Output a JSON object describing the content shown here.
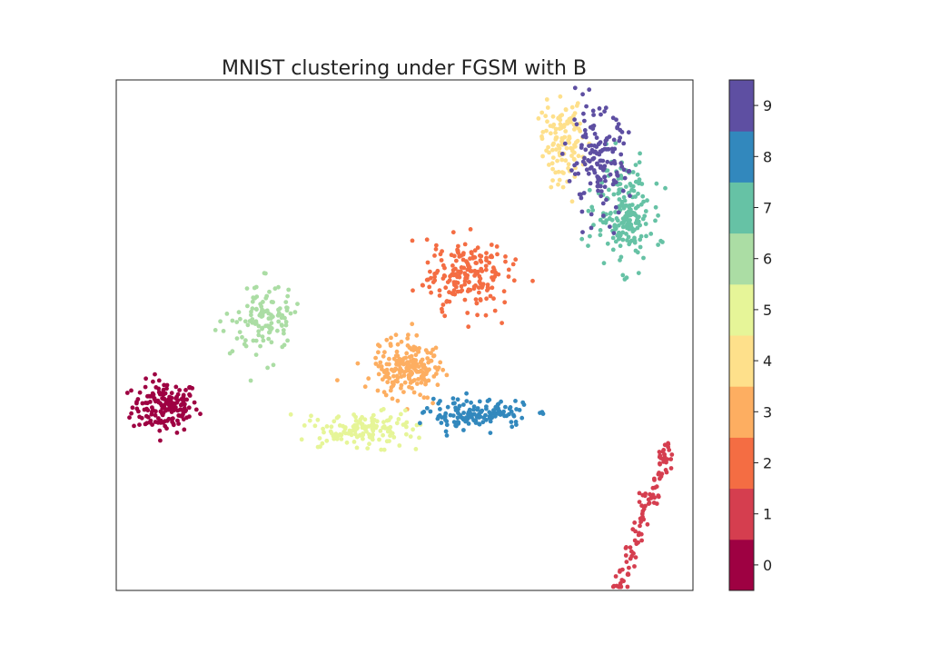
{
  "chart_data": {
    "type": "scatter",
    "title": "MNIST clustering under FGSM with B",
    "xlabel": "",
    "ylabel": "",
    "axes_ticks": false,
    "grid": false,
    "legend": "colorbar-right",
    "colorbar": {
      "ticks": [
        "0",
        "1",
        "2",
        "3",
        "4",
        "5",
        "6",
        "7",
        "8",
        "9"
      ],
      "colors": [
        "#9e0142",
        "#d53e4f",
        "#f46d43",
        "#fdae61",
        "#fee08b",
        "#e6f598",
        "#abdda4",
        "#66c2a5",
        "#3288bd",
        "#5e4fa2"
      ]
    },
    "xlim": [
      0,
      100
    ],
    "ylim": [
      0,
      100
    ],
    "clusters": [
      {
        "label": "0",
        "center": [
          8.5,
          36
        ],
        "spread": [
          5.2,
          4.6
        ],
        "count": 170
      },
      {
        "label": "1",
        "center": [
          91.5,
          14
        ],
        "spread": [
          4.6,
          15
        ],
        "count": 110,
        "shape": "diagonal"
      },
      {
        "label": "2",
        "center": [
          60.5,
          62
        ],
        "spread": [
          6.5,
          6.6
        ],
        "count": 200
      },
      {
        "label": "3",
        "center": [
          50.5,
          43.5
        ],
        "spread": [
          5.5,
          5.0
        ],
        "count": 210
      },
      {
        "label": "4",
        "center": [
          77.5,
          87
        ],
        "spread": [
          3.5,
          7.5
        ],
        "count": 120
      },
      {
        "label": "5",
        "center": [
          42.5,
          31.5
        ],
        "spread": [
          8.5,
          3.2
        ],
        "count": 140
      },
      {
        "label": "6",
        "center": [
          25.5,
          53.5
        ],
        "spread": [
          4.8,
          6.0
        ],
        "count": 120
      },
      {
        "label": "7",
        "center": [
          88,
          74
        ],
        "spread": [
          4.5,
          9.0
        ],
        "count": 200
      },
      {
        "label": "8",
        "center": [
          62.5,
          34.5
        ],
        "spread": [
          8.0,
          2.5
        ],
        "count": 150
      },
      {
        "label": "9",
        "center": [
          83.5,
          83.5
        ],
        "spread": [
          4.8,
          9.5
        ],
        "count": 150
      }
    ]
  }
}
